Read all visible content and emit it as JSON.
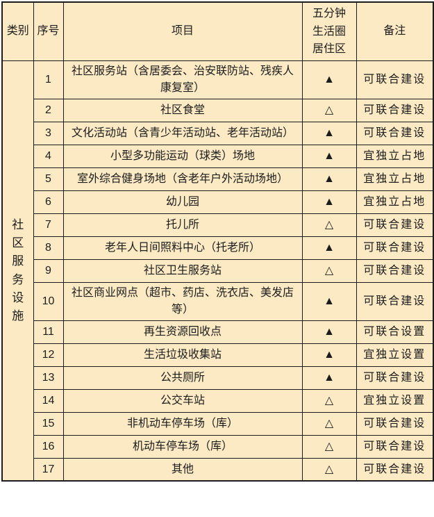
{
  "colors": {
    "table_background": "#FBEAC4",
    "border": "#1B1B1B",
    "text": "#1C1C1C",
    "page_background": "#FFFFFF"
  },
  "symbols": {
    "filled_triangle": "▲",
    "hollow_triangle": "△"
  },
  "table": {
    "headers": {
      "category": "类别",
      "index": "序号",
      "project": "项目",
      "circle": "五分钟生活圈居住区",
      "remark": "备注"
    },
    "category_label": "社区服务设施",
    "rows": [
      {
        "no": "1",
        "project": "社区服务站（含居委会、治安联防站、残疾人康复室）",
        "symbol": "▲",
        "remark": "可联合建设"
      },
      {
        "no": "2",
        "project": "社区食堂",
        "symbol": "△",
        "remark": "可联合建设"
      },
      {
        "no": "3",
        "project": "文化活动站（含青少年活动站、老年活动站）",
        "symbol": "▲",
        "remark": "可联合建设"
      },
      {
        "no": "4",
        "project": "小型多功能运动（球类）场地",
        "symbol": "▲",
        "remark": "宜独立占地"
      },
      {
        "no": "5",
        "project": "室外综合健身场地（含老年户外活动场地）",
        "symbol": "▲",
        "remark": "宜独立占地"
      },
      {
        "no": "6",
        "project": "幼儿园",
        "symbol": "▲",
        "remark": "宜独立占地"
      },
      {
        "no": "7",
        "project": "托儿所",
        "symbol": "△",
        "remark": "可联合建设"
      },
      {
        "no": "8",
        "project": "老年人日间照料中心（托老所）",
        "symbol": "▲",
        "remark": "可联合建设"
      },
      {
        "no": "9",
        "project": "社区卫生服务站",
        "symbol": "△",
        "remark": "可联合建设"
      },
      {
        "no": "10",
        "project": "社区商业网点（超市、药店、洗衣店、美发店等）",
        "symbol": "▲",
        "remark": "可联合建设"
      },
      {
        "no": "11",
        "project": "再生资源回收点",
        "symbol": "▲",
        "remark": "可联合设置"
      },
      {
        "no": "12",
        "project": "生活垃圾收集站",
        "symbol": "▲",
        "remark": "宜独立设置"
      },
      {
        "no": "13",
        "project": "公共厕所",
        "symbol": "▲",
        "remark": "可联合建设"
      },
      {
        "no": "14",
        "project": "公交车站",
        "symbol": "△",
        "remark": "宜独立设置"
      },
      {
        "no": "15",
        "project": "非机动车停车场（库）",
        "symbol": "△",
        "remark": "可联合建设"
      },
      {
        "no": "16",
        "project": "机动车停车场（库）",
        "symbol": "△",
        "remark": "可联合建设"
      },
      {
        "no": "17",
        "project": "其他",
        "symbol": "△",
        "remark": "可联合建设"
      }
    ]
  }
}
